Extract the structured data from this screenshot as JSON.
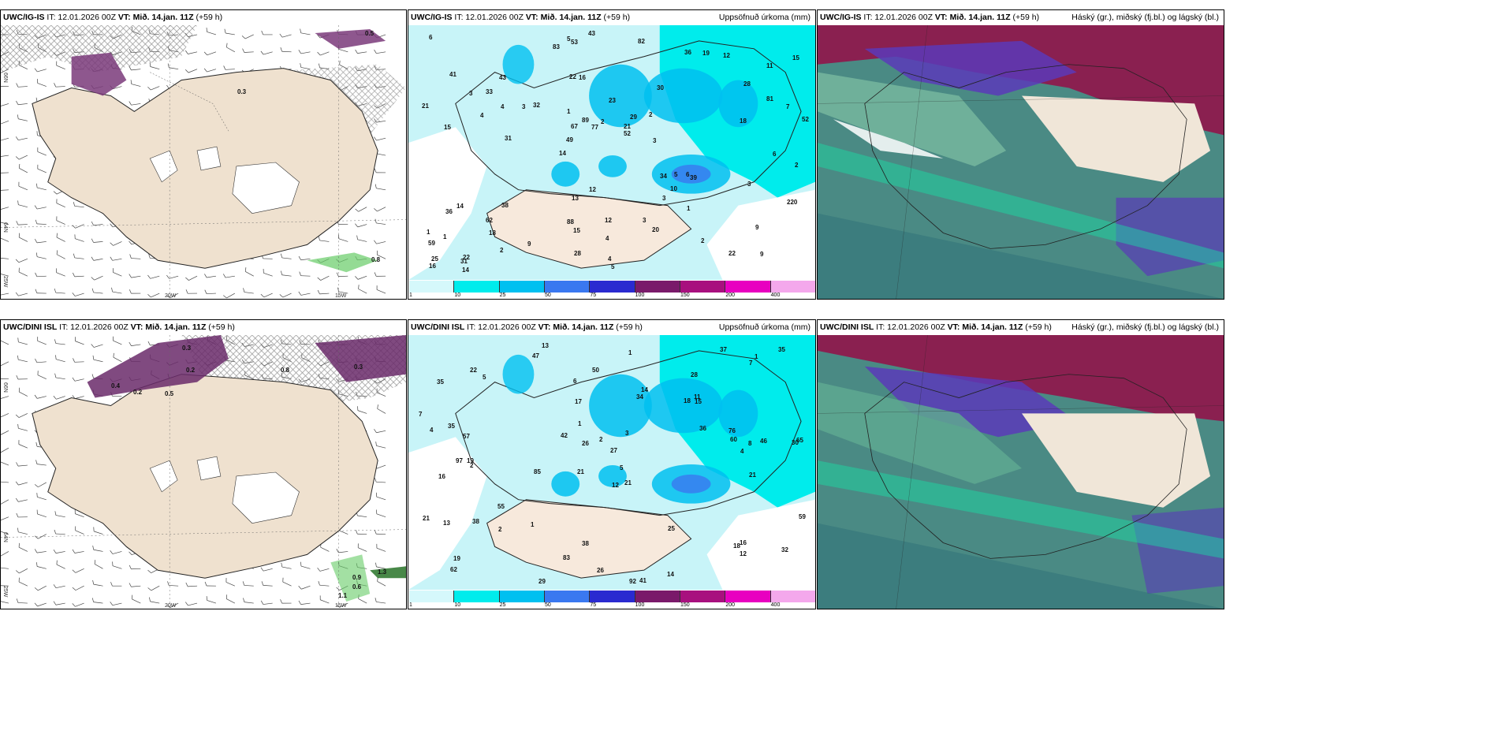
{
  "panels": [
    {
      "model": "UWC/IG-IS",
      "it": "IT: 12.01.2026 00Z",
      "vt_label": "VT:",
      "vt": "Mið. 14.jan. 11Z",
      "lead": "(+59 h)",
      "right_title": ""
    },
    {
      "model": "UWC/IG-IS",
      "it": "IT: 12.01.2026 00Z",
      "vt_label": "VT:",
      "vt": "Mið. 14.jan. 11Z",
      "lead": "(+59 h)",
      "right_title": "Uppsöfnuð úrkoma (mm)"
    },
    {
      "model": "UWC/IG-IS",
      "it": "IT: 12.01.2026 00Z",
      "vt_label": "VT:",
      "vt": "Mið. 14.jan. 11Z",
      "lead": "(+59 h)",
      "right_title": "Háský (gr.), miðský (fj.bl.) og lágský (bl.)"
    },
    {
      "model": "UWC/DINI ISL",
      "it": "IT: 12.01.2026 00Z",
      "vt_label": "VT:",
      "vt": "Mið. 14.jan. 11Z",
      "lead": "(+59 h)",
      "right_title": ""
    },
    {
      "model": "UWC/DINI ISL",
      "it": "IT: 12.01.2026 00Z",
      "vt_label": "VT:",
      "vt": "Mið. 14.jan. 11Z",
      "lead": "(+59 h)",
      "right_title": "Uppsöfnuð úrkoma (mm)"
    },
    {
      "model": "UWC/DINI ISL",
      "it": "IT: 12.01.2026 00Z",
      "vt_label": "VT:",
      "vt": "Mið. 14.jan. 11Z",
      "lead": "(+59 h)",
      "right_title": "Háský (gr.), miðský (fj.bl.) og lágský (bl.)"
    }
  ],
  "axes": {
    "lon_20w": "20W",
    "lon_15w": "15W",
    "lat_66n": "66N",
    "lat_64n": "64N",
    "lon_25w": "25W"
  },
  "colorbar": {
    "ticks": [
      "1",
      "10",
      "25",
      "50",
      "75",
      "100",
      "150",
      "200",
      "400"
    ],
    "colors": [
      "#d5f8fb",
      "#00ecec",
      "#00c0f0",
      "#3a78f0",
      "#2a2ad0",
      "#7a1a6a",
      "#a8107e",
      "#e800c0",
      "#f4a8ec"
    ]
  },
  "precip_top": [
    "9",
    "15",
    "11",
    "14",
    "30",
    "22",
    "22",
    "23",
    "14",
    "32",
    "59",
    "18",
    "16",
    "29",
    "39",
    "41",
    "53",
    "52",
    "34",
    "81",
    "49",
    "88",
    "67",
    "43",
    "36",
    "38",
    "22",
    "9",
    "6",
    "5",
    "3",
    "4",
    "3",
    "2",
    "7",
    "21",
    "25",
    "15",
    "52",
    "36",
    "28",
    "15",
    "10",
    "20",
    "62",
    "14",
    "16",
    "12",
    "12",
    "43",
    "31",
    "21",
    "33",
    "19",
    "31",
    "82",
    "83",
    "89",
    "220",
    "13",
    "9",
    "5",
    "4",
    "1",
    "6",
    "3",
    "2",
    "1",
    "4",
    "2",
    "1",
    "3",
    "3",
    "28",
    "18",
    "12",
    "2",
    "4",
    "3",
    "5",
    "6",
    "2",
    "1",
    "77"
  ],
  "precip_bottom": [
    "13",
    "28",
    "30",
    "21",
    "21",
    "19",
    "35",
    "18",
    "16",
    "34",
    "27",
    "62",
    "47",
    "85",
    "92",
    "41",
    "38",
    "37",
    "36",
    "55",
    "57",
    "97",
    "65",
    "46",
    "21",
    "35",
    "26",
    "60",
    "16",
    "13",
    "18",
    "14",
    "38",
    "42",
    "25",
    "59",
    "76",
    "83",
    "35",
    "50",
    "19",
    "29",
    "14",
    "22",
    "26",
    "15",
    "12",
    "11",
    "7",
    "5",
    "6",
    "4",
    "3",
    "7",
    "1",
    "2",
    "1",
    "2",
    "1",
    "17",
    "32",
    "21",
    "5",
    "1",
    "12",
    "4",
    "8",
    "2"
  ],
  "wind_top_labels": [
    "0.5",
    "0.8",
    "0.3"
  ],
  "wind_bottom_labels": [
    "0.4",
    "0.2",
    "0.3",
    "0.2",
    "0.5",
    "0.8",
    "0.3",
    "0.6",
    "0.9",
    "1.3",
    "1.1"
  ]
}
